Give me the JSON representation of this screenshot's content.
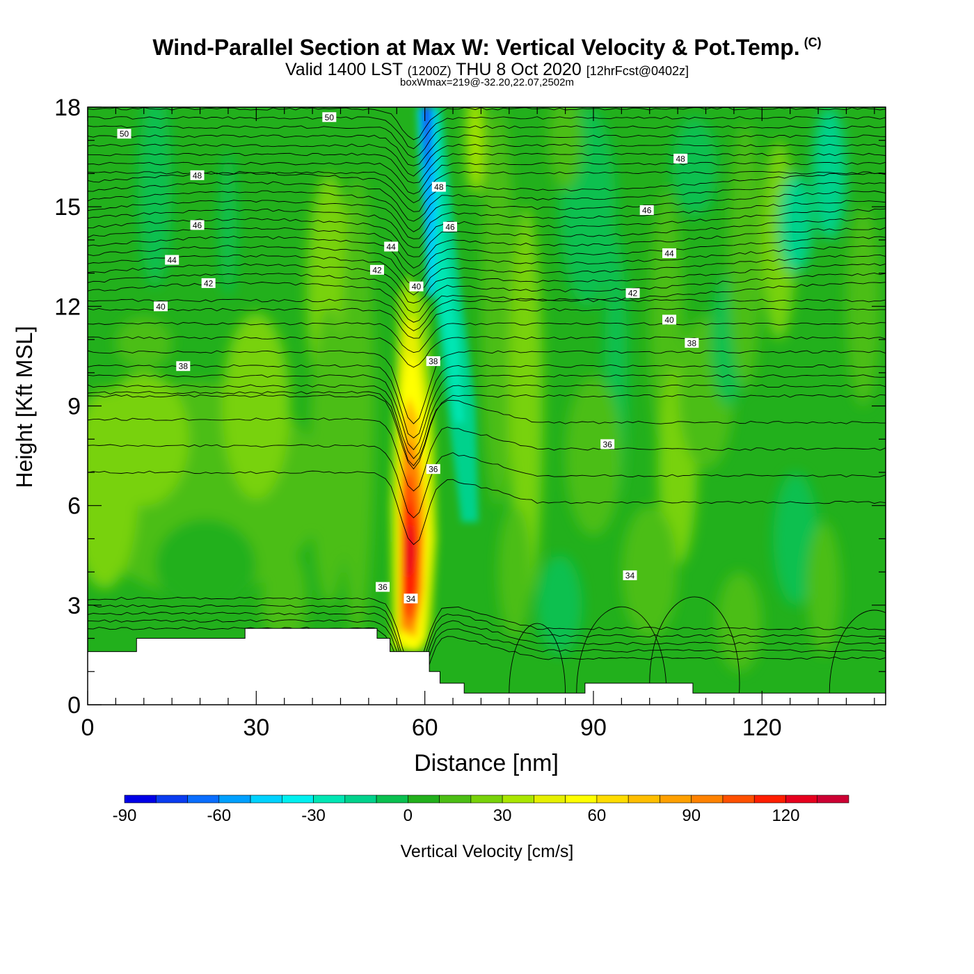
{
  "title": {
    "main": "Wind-Parallel Section at Max W: Vertical Velocity & Pot.Temp.",
    "copyright": "(C)",
    "valid_prefix": "Valid 1400 LST",
    "valid_utc": "(1200Z)",
    "valid_date": "THU 8 Oct 2020",
    "forecast": "[12hrFcst@0402z]",
    "box_info": "boxWmax=219@-32.20,22.07,2502m"
  },
  "colors": {
    "background_fill": "#22b01c",
    "terrain": "#ffffff",
    "contour_line": "#000000"
  },
  "chart_data": {
    "type": "heatmap",
    "title": "Wind-Parallel Section at Max W: Vertical Velocity & Pot.Temp.",
    "xlabel": "Distance [nm]",
    "ylabel": "Height [Kft MSL]",
    "xlim": [
      0,
      142
    ],
    "ylim": [
      0,
      18
    ],
    "x_ticks": [
      0,
      30,
      60,
      90,
      120
    ],
    "y_ticks": [
      0,
      3,
      6,
      9,
      12,
      15,
      18
    ],
    "colorbar": {
      "label": "Vertical Velocity [cm/s]",
      "bounds": [
        -90,
        -80,
        -70,
        -60,
        -50,
        -40,
        -30,
        -20,
        -10,
        0,
        10,
        20,
        30,
        40,
        50,
        60,
        70,
        80,
        90,
        100,
        110,
        120,
        130,
        140
      ],
      "colors": [
        "#0000e6",
        "#0a3cf0",
        "#0a6eff",
        "#00a0ff",
        "#00d2ff",
        "#00f0f0",
        "#00e6b4",
        "#00d28c",
        "#0ac050",
        "#22b01c",
        "#4cbe14",
        "#78d20a",
        "#aae600",
        "#e6f000",
        "#ffff00",
        "#ffdc00",
        "#ffbe00",
        "#ffa000",
        "#ff8200",
        "#ff5000",
        "#ff1e00",
        "#e6001e",
        "#cc0033"
      ],
      "tick_labels": [
        -90,
        -60,
        -30,
        0,
        30,
        60,
        90,
        120
      ]
    },
    "updraft_max": 124,
    "downdraft_min": -75,
    "terrain_kft": [
      {
        "x": [
          0,
          8.7
        ],
        "top": 1.6
      },
      {
        "x": [
          8.7,
          28
        ],
        "top": 2.0
      },
      {
        "x": [
          28,
          51.5
        ],
        "top": 2.3
      },
      {
        "x": [
          51.5,
          53.8
        ],
        "top": 2.0
      },
      {
        "x": [
          53.8,
          60.8
        ],
        "top": 1.6
      },
      {
        "x": [
          60.8,
          62.7
        ],
        "top": 1.0
      },
      {
        "x": [
          62.7,
          67
        ],
        "top": 0.65
      },
      {
        "x": [
          67,
          88.5
        ],
        "top": 0.35
      },
      {
        "x": [
          88.5,
          107.7
        ],
        "top": 0.65
      },
      {
        "x": [
          107.7,
          142
        ],
        "top": 0.35
      }
    ],
    "contour_labels": [
      {
        "text": "50",
        "x": 6.5,
        "y": 17.2
      },
      {
        "text": "50",
        "x": 43,
        "y": 17.7
      },
      {
        "text": "48",
        "x": 19.5,
        "y": 15.95
      },
      {
        "text": "48",
        "x": 62.5,
        "y": 15.6
      },
      {
        "text": "48",
        "x": 105.5,
        "y": 16.45
      },
      {
        "text": "46",
        "x": 19.5,
        "y": 14.45
      },
      {
        "text": "46",
        "x": 64.5,
        "y": 14.4
      },
      {
        "text": "46",
        "x": 99.5,
        "y": 14.9
      },
      {
        "text": "44",
        "x": 15,
        "y": 13.4
      },
      {
        "text": "44",
        "x": 54,
        "y": 13.8
      },
      {
        "text": "44",
        "x": 103.5,
        "y": 13.6
      },
      {
        "text": "42",
        "x": 21.5,
        "y": 12.7
      },
      {
        "text": "42",
        "x": 51.5,
        "y": 13.1
      },
      {
        "text": "42",
        "x": 97,
        "y": 12.4
      },
      {
        "text": "40",
        "x": 13,
        "y": 12.0
      },
      {
        "text": "40",
        "x": 58.5,
        "y": 12.6
      },
      {
        "text": "40",
        "x": 103.5,
        "y": 11.6
      },
      {
        "text": "38",
        "x": 17,
        "y": 10.2
      },
      {
        "text": "38",
        "x": 61.5,
        "y": 10.35
      },
      {
        "text": "38",
        "x": 107.5,
        "y": 10.9
      },
      {
        "text": "36",
        "x": 92.5,
        "y": 7.85
      },
      {
        "text": "36",
        "x": 61.5,
        "y": 7.1
      },
      {
        "text": "36",
        "x": 52.5,
        "y": 3.55
      },
      {
        "text": "34",
        "x": 96.5,
        "y": 3.9
      },
      {
        "text": "34",
        "x": 57.5,
        "y": 3.2
      }
    ]
  }
}
